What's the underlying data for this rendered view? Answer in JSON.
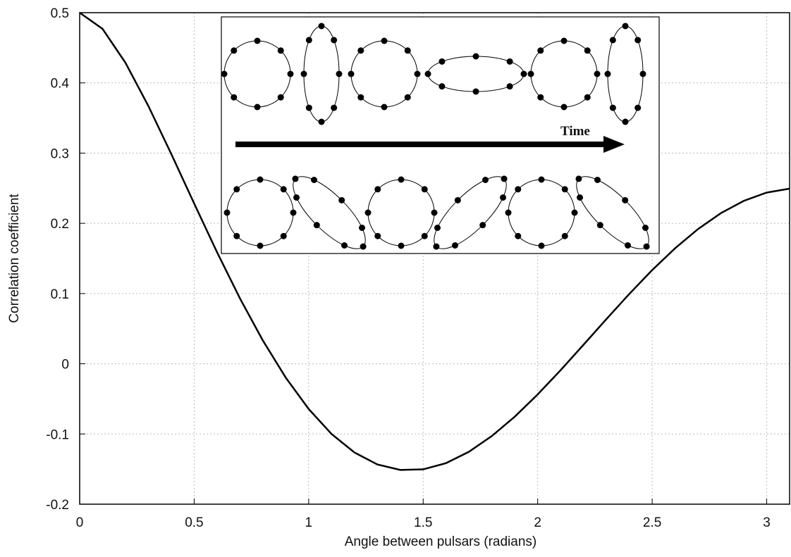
{
  "chart_data": {
    "type": "line",
    "xlabel": "Angle between pulsars (radians)",
    "ylabel": "Correlation coefficient",
    "annotation": "Time",
    "x": [
      0,
      0.1,
      0.2,
      0.3,
      0.4,
      0.5,
      0.6,
      0.7,
      0.8,
      0.9,
      1.0,
      1.1,
      1.2,
      1.3,
      1.4,
      1.5,
      1.6,
      1.7,
      1.8,
      1.9,
      2.0,
      2.1,
      2.2,
      2.3,
      2.4,
      2.5,
      2.6,
      2.7,
      2.8,
      2.9,
      3.0,
      3.1
    ],
    "series": [
      {
        "color": "#000000",
        "values": [
          0.5,
          0.4769,
          0.4286,
          0.3671,
          0.2988,
          0.2282,
          0.1588,
          0.093,
          0.0331,
          -0.0198,
          -0.0644,
          -0.1,
          -0.1264,
          -0.1434,
          -0.1512,
          -0.1504,
          -0.1415,
          -0.1253,
          -0.1029,
          -0.0753,
          -0.0437,
          -0.0092,
          0.027,
          0.0636,
          0.0994,
          0.1334,
          0.1645,
          0.1918,
          0.2145,
          0.232,
          0.2438,
          0.2494
        ]
      }
    ],
    "xlim": [
      0,
      3.1
    ],
    "ylim": [
      -0.2,
      0.5
    ],
    "xticks": [
      0,
      0.5,
      1,
      1.5,
      2,
      2.5,
      3
    ],
    "yticks": [
      -0.2,
      -0.1,
      0,
      0.1,
      0.2,
      0.3,
      0.4,
      0.5
    ],
    "grid": true
  }
}
